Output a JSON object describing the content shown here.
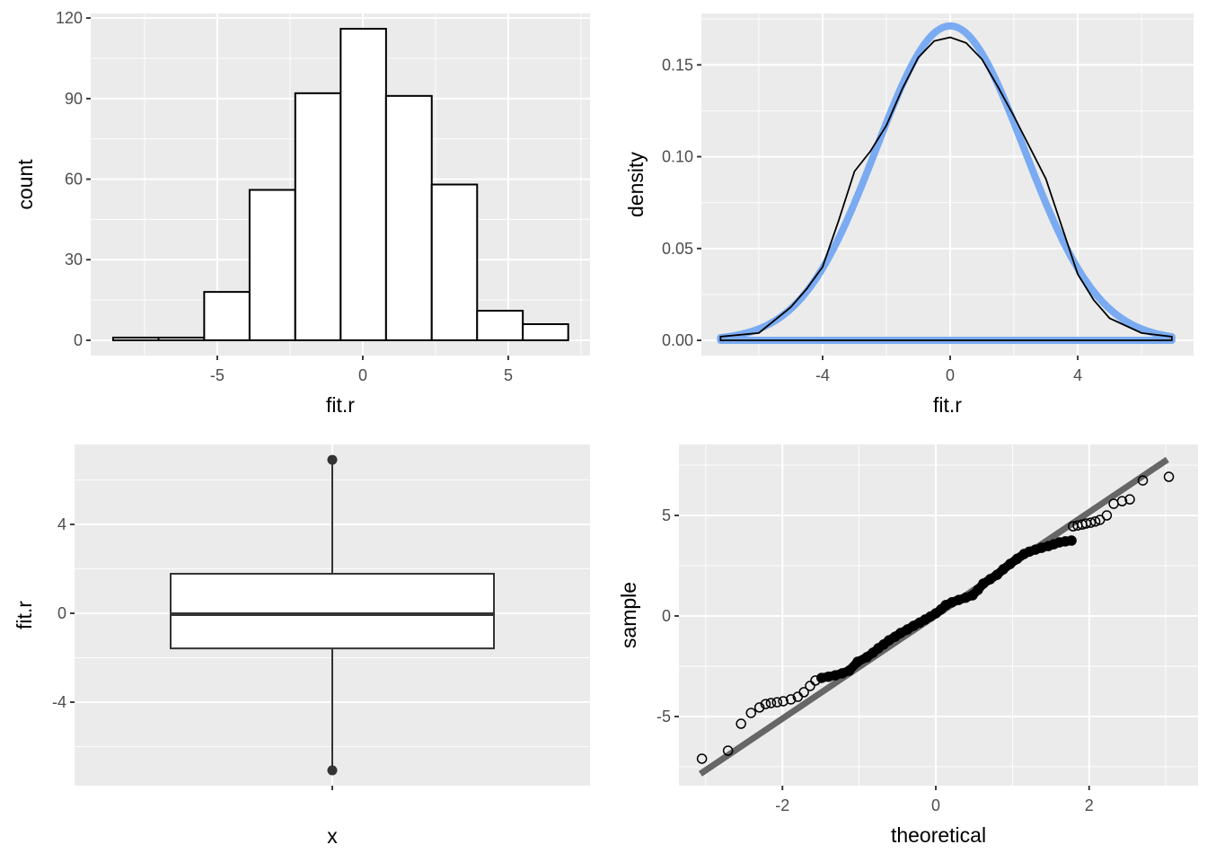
{
  "chart_data": [
    {
      "type": "bar",
      "subtype": "histogram",
      "xlabel": "fit.r",
      "ylabel": "count",
      "xlim": [
        -9.35,
        7.81
      ],
      "ylim": [
        -5.7,
        121.7
      ],
      "xticks": [
        -5,
        0,
        5
      ],
      "xtick_labels": [
        "-5",
        "0",
        "5"
      ],
      "yticks": [
        0,
        30,
        60,
        90,
        120
      ],
      "ytick_labels": [
        "0",
        "30",
        "60",
        "90",
        "120"
      ],
      "bin_edges": [
        -8.58,
        -7.02,
        -5.45,
        -3.89,
        -2.32,
        -0.76,
        0.8,
        2.37,
        3.93,
        5.5,
        7.06
      ],
      "counts": [
        1,
        1,
        18,
        56,
        92,
        116,
        91,
        58,
        11,
        6
      ],
      "grid": true
    },
    {
      "type": "line",
      "subtype": "density",
      "xlabel": "fit.r",
      "ylabel": "density",
      "xlim": [
        -7.8,
        7.63
      ],
      "ylim": [
        -0.0083,
        0.178
      ],
      "xticks": [
        -4,
        0,
        4
      ],
      "xtick_labels": [
        "-4",
        "0",
        "4"
      ],
      "yticks": [
        0,
        0.05,
        0.1,
        0.15
      ],
      "ytick_labels": [
        "0.00",
        "0.05",
        "0.10",
        "0.15"
      ],
      "series": [
        {
          "name": "normal",
          "color": "#7aabf2",
          "mean": 0,
          "sd": 2.33,
          "range": [
            -7.2,
            6.95
          ]
        },
        {
          "name": "kde",
          "color": "#000000",
          "x": [
            -7.2,
            -6,
            -5,
            -4.5,
            -4,
            -3.5,
            -3,
            -2.5,
            -2,
            -1.5,
            -1,
            -0.5,
            0,
            0.5,
            1,
            1.5,
            2,
            2.5,
            3,
            3.5,
            4,
            4.5,
            5,
            6,
            6.95
          ],
          "y": [
            0.002,
            0.004,
            0.018,
            0.028,
            0.04,
            0.065,
            0.092,
            0.103,
            0.117,
            0.137,
            0.154,
            0.163,
            0.165,
            0.162,
            0.153,
            0.138,
            0.122,
            0.105,
            0.088,
            0.062,
            0.036,
            0.022,
            0.012,
            0.004,
            0.002
          ]
        }
      ],
      "grid": true
    },
    {
      "type": "boxplot",
      "xlabel": "x",
      "ylabel": "fit.r",
      "ylim": [
        -7.76,
        7.6
      ],
      "yticks": [
        -4,
        0,
        4
      ],
      "ytick_labels": [
        "-4",
        "0",
        "4"
      ],
      "box": {
        "lower_whisker": -7.07,
        "q1": -1.58,
        "median": -0.04,
        "q3": 1.78,
        "upper_whisker": 6.91
      },
      "outliers": [
        6.91,
        -7.07
      ],
      "grid": true
    },
    {
      "type": "scatter",
      "subtype": "qq",
      "xlabel": "theoretical",
      "ylabel": "sample",
      "xlim": [
        -3.35,
        3.42
      ],
      "ylim": [
        -8.44,
        8.53
      ],
      "xticks": [
        -2,
        0,
        2
      ],
      "xtick_labels": [
        "-2",
        "0",
        "2"
      ],
      "yticks": [
        -5,
        0,
        5
      ],
      "ytick_labels": [
        "-5",
        "0",
        "5"
      ],
      "qq_line": {
        "x": [
          -3.07,
          3.02
        ],
        "y": [
          -7.85,
          7.78
        ],
        "color": "#666666"
      },
      "points": [
        [
          -3.05,
          -7.1
        ],
        [
          -2.71,
          -6.7
        ],
        [
          -2.54,
          -5.36
        ],
        [
          -2.41,
          -4.82
        ],
        [
          -2.3,
          -4.55
        ],
        [
          -2.22,
          -4.38
        ],
        [
          -2.15,
          -4.33
        ],
        [
          -2.07,
          -4.29
        ],
        [
          -1.99,
          -4.24
        ],
        [
          -1.89,
          -4.15
        ],
        [
          -1.8,
          -4.02
        ],
        [
          -1.72,
          -3.79
        ],
        [
          -1.64,
          -3.48
        ],
        [
          -1.57,
          -3.21
        ],
        [
          -1.49,
          -3.08
        ],
        [
          -1.4,
          -3.02
        ],
        [
          -1.31,
          -2.95
        ],
        [
          -1.22,
          -2.85
        ],
        [
          -1.13,
          -2.72
        ],
        [
          -1.02,
          -2.28
        ],
        [
          -0.9,
          -2.05
        ],
        [
          -0.82,
          -1.83
        ],
        [
          -0.75,
          -1.61
        ],
        [
          -0.68,
          -1.42
        ],
        [
          -0.61,
          -1.21
        ],
        [
          -0.53,
          -1.03
        ],
        [
          -0.46,
          -0.85
        ],
        [
          -0.37,
          -0.67
        ],
        [
          -0.29,
          -0.49
        ],
        [
          -0.21,
          -0.33
        ],
        [
          -0.14,
          -0.18
        ],
        [
          -0.07,
          -0.03
        ],
        [
          0,
          0.13
        ],
        [
          0.07,
          0.33
        ],
        [
          0.13,
          0.54
        ],
        [
          0.21,
          0.68
        ],
        [
          0.3,
          0.8
        ],
        [
          0.39,
          0.91
        ],
        [
          0.48,
          1.03
        ],
        [
          0.55,
          1.3
        ],
        [
          0.62,
          1.61
        ],
        [
          0.71,
          1.83
        ],
        [
          0.8,
          2.05
        ],
        [
          0.88,
          2.32
        ],
        [
          0.97,
          2.59
        ],
        [
          1.06,
          2.84
        ],
        [
          1.15,
          3.08
        ],
        [
          1.22,
          3.2
        ],
        [
          1.3,
          3.3
        ],
        [
          1.38,
          3.39
        ],
        [
          1.47,
          3.48
        ],
        [
          1.54,
          3.57
        ],
        [
          1.61,
          3.66
        ],
        [
          1.69,
          3.71
        ],
        [
          1.77,
          3.75
        ],
        [
          1.79,
          4.46
        ],
        [
          1.85,
          4.5
        ],
        [
          1.91,
          4.55
        ],
        [
          1.96,
          4.6
        ],
        [
          2.02,
          4.64
        ],
        [
          2.08,
          4.7
        ],
        [
          2.14,
          4.78
        ],
        [
          2.23,
          5.0
        ],
        [
          2.32,
          5.58
        ],
        [
          2.43,
          5.71
        ],
        [
          2.53,
          5.8
        ],
        [
          2.7,
          6.74
        ],
        [
          3.04,
          6.92
        ]
      ],
      "grid": true
    }
  ]
}
